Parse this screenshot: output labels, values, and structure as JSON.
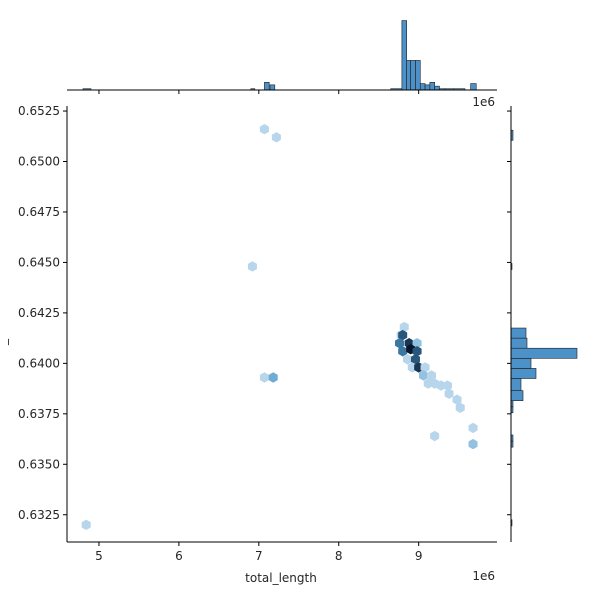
{
  "chart_data": {
    "type": "hexbin",
    "title": "",
    "xlabel": "total_length",
    "ylabel": "_",
    "x_offset_text": "1e6",
    "y_offset_text": "",
    "top_offset_text": "1e6",
    "xlim": [
      4600000,
      9980000
    ],
    "ylim": [
      0.63115,
      0.65275
    ],
    "x_ticks": [
      5000000,
      6000000,
      7000000,
      8000000,
      9000000
    ],
    "x_tick_labels": [
      "5",
      "6",
      "7",
      "8",
      "9"
    ],
    "y_ticks": [
      0.6325,
      0.635,
      0.6375,
      0.64,
      0.6425,
      0.645,
      0.6475,
      0.65,
      0.6525
    ],
    "y_tick_labels": [
      "0.6325",
      "0.6350",
      "0.6375",
      "0.6400",
      "0.6425",
      "0.6450",
      "0.6475",
      "0.6500",
      "0.6525"
    ],
    "hex_max_count": 8,
    "hexes": [
      {
        "x": 4840000,
        "y": 0.632,
        "count": 1
      },
      {
        "x": 6920000,
        "y": 0.6448,
        "count": 1
      },
      {
        "x": 7070000,
        "y": 0.6516,
        "count": 1
      },
      {
        "x": 7220000,
        "y": 0.6512,
        "count": 1
      },
      {
        "x": 7070000,
        "y": 0.6393,
        "count": 1
      },
      {
        "x": 7180000,
        "y": 0.6393,
        "count": 3
      },
      {
        "x": 8820000,
        "y": 0.6418,
        "count": 1
      },
      {
        "x": 8780000,
        "y": 0.6414,
        "count": 1
      },
      {
        "x": 8800000,
        "y": 0.6414,
        "count": 6
      },
      {
        "x": 8760000,
        "y": 0.641,
        "count": 5
      },
      {
        "x": 8880000,
        "y": 0.641,
        "count": 7
      },
      {
        "x": 8980000,
        "y": 0.641,
        "count": 2
      },
      {
        "x": 8800000,
        "y": 0.6406,
        "count": 5
      },
      {
        "x": 8900000,
        "y": 0.6407,
        "count": 8
      },
      {
        "x": 8980000,
        "y": 0.6406,
        "count": 6
      },
      {
        "x": 8860000,
        "y": 0.6402,
        "count": 1
      },
      {
        "x": 8960000,
        "y": 0.6402,
        "count": 6
      },
      {
        "x": 8920000,
        "y": 0.6398,
        "count": 1
      },
      {
        "x": 9000000,
        "y": 0.6398,
        "count": 7
      },
      {
        "x": 9080000,
        "y": 0.6398,
        "count": 1
      },
      {
        "x": 9060000,
        "y": 0.6394,
        "count": 2
      },
      {
        "x": 9160000,
        "y": 0.6394,
        "count": 1
      },
      {
        "x": 9120000,
        "y": 0.639,
        "count": 1
      },
      {
        "x": 9200000,
        "y": 0.639,
        "count": 1
      },
      {
        "x": 9280000,
        "y": 0.6389,
        "count": 1
      },
      {
        "x": 9360000,
        "y": 0.6389,
        "count": 1
      },
      {
        "x": 9380000,
        "y": 0.6385,
        "count": 1
      },
      {
        "x": 9480000,
        "y": 0.6382,
        "count": 1
      },
      {
        "x": 9520000,
        "y": 0.6378,
        "count": 1
      },
      {
        "x": 9200000,
        "y": 0.6364,
        "count": 1
      },
      {
        "x": 9680000,
        "y": 0.6368,
        "count": 1
      },
      {
        "x": 9680000,
        "y": 0.636,
        "count": 2
      }
    ],
    "marginal_x": {
      "bins": [
        {
          "x0": 4800000,
          "x1": 4900000,
          "count": 1
        },
        {
          "x0": 6900000,
          "x1": 6950000,
          "count": 1
        },
        {
          "x0": 7070000,
          "x1": 7130000,
          "count": 6
        },
        {
          "x0": 7140000,
          "x1": 7200000,
          "count": 4
        },
        {
          "x0": 8650000,
          "x1": 8790000,
          "count": 1
        },
        {
          "x0": 8790000,
          "x1": 8850000,
          "count": 54
        },
        {
          "x0": 8850000,
          "x1": 8900000,
          "count": 23
        },
        {
          "x0": 8900000,
          "x1": 8960000,
          "count": 23
        },
        {
          "x0": 8960000,
          "x1": 9020000,
          "count": 23
        },
        {
          "x0": 9020000,
          "x1": 9080000,
          "count": 5
        },
        {
          "x0": 9080000,
          "x1": 9140000,
          "count": 4
        },
        {
          "x0": 9140000,
          "x1": 9200000,
          "count": 6
        },
        {
          "x0": 9200000,
          "x1": 9260000,
          "count": 3
        },
        {
          "x0": 9260000,
          "x1": 9330000,
          "count": 1
        },
        {
          "x0": 9330000,
          "x1": 9440000,
          "count": 1
        },
        {
          "x0": 9440000,
          "x1": 9580000,
          "count": 1
        },
        {
          "x0": 9650000,
          "x1": 9720000,
          "count": 5
        }
      ],
      "max_count": 56
    },
    "marginal_y": {
      "bins": [
        {
          "y0": 0.63195,
          "y1": 0.63225,
          "count": 1
        },
        {
          "y0": 0.63585,
          "y1": 0.63615,
          "count": 2
        },
        {
          "y0": 0.63615,
          "y1": 0.63645,
          "count": 2
        },
        {
          "y0": 0.63755,
          "y1": 0.63785,
          "count": 2
        },
        {
          "y0": 0.63785,
          "y1": 0.63815,
          "count": 2
        },
        {
          "y0": 0.63815,
          "y1": 0.63865,
          "count": 12
        },
        {
          "y0": 0.63865,
          "y1": 0.63925,
          "count": 10
        },
        {
          "y0": 0.63925,
          "y1": 0.63975,
          "count": 25
        },
        {
          "y0": 0.63975,
          "y1": 0.64025,
          "count": 20
        },
        {
          "y0": 0.64025,
          "y1": 0.64075,
          "count": 66
        },
        {
          "y0": 0.64075,
          "y1": 0.64125,
          "count": 16
        },
        {
          "y0": 0.64125,
          "y1": 0.64175,
          "count": 15
        },
        {
          "y0": 0.64465,
          "y1": 0.64495,
          "count": 1
        },
        {
          "y0": 0.65105,
          "y1": 0.65155,
          "count": 2
        }
      ],
      "max_count": 70
    },
    "colors": {
      "fill": "#4c91c8",
      "edge": "#1f1f1f",
      "hex_low": "#dbe9f6",
      "hex_mid": "#4a98c9",
      "hex_high": "#08162c"
    }
  }
}
